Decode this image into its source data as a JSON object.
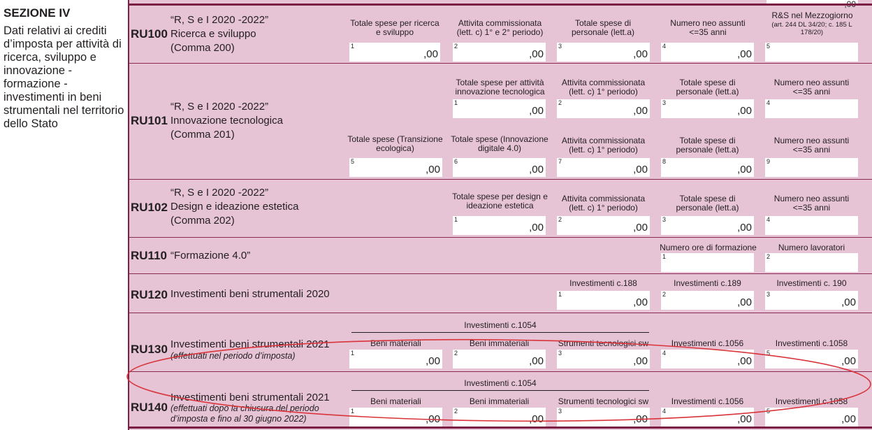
{
  "section": {
    "title": "SEZIONE IV",
    "description": "Dati relativi ai crediti d’imposta per attività di ricerca, sviluppo e innovazione - formazione - investimenti in beni strumentali nel territorio dello Stato"
  },
  "top_partial_value": ",00",
  "rows": {
    "ru100": {
      "code": "RU100",
      "desc": [
        "“R, S e I 2020 -2022”",
        "Ricerca e sviluppo",
        "(Comma 200)"
      ],
      "headers": [
        "Totale spese per ricerca e sviluppo",
        "Attivita commissionata (lett. c) 1° e 2° periodo)",
        "Totale spese di personale (lett.a)",
        "Numero neo assunti <=35 anni",
        "R&S nel Mezzogiorno",
        "(art. 244 DL 34/20; c. 185 L 178/20)"
      ],
      "fields": [
        {
          "num": "1",
          "val": ",00"
        },
        {
          "num": "2",
          "val": ",00"
        },
        {
          "num": "3",
          "val": ",00"
        },
        {
          "num": "4",
          "val": ",00"
        },
        {
          "num": "5",
          "val": ""
        }
      ]
    },
    "ru101": {
      "code": "RU101",
      "desc": [
        "“R, S e I 2020 -2022”",
        "Innovazione tecnologica",
        "(Comma 201)"
      ],
      "headers_top": [
        "Totale spese per attività innovazione tecnologica",
        "Attivita commissionata (lett. c) 1° periodo)",
        "Totale spese di personale (lett.a)",
        "Numero neo assunti <=35 anni"
      ],
      "fields_top": [
        {
          "num": "1",
          "val": ",00"
        },
        {
          "num": "2",
          "val": ",00"
        },
        {
          "num": "3",
          "val": ",00"
        },
        {
          "num": "4",
          "val": ""
        }
      ],
      "headers_bottom": [
        "Totale spese (Transizione ecologica)",
        "Totale spese (Innovazione digitale 4.0)",
        "Attivita commissionata (lett. c) 1° periodo)",
        "Totale spese di personale (lett.a)",
        "Numero neo assunti <=35 anni"
      ],
      "fields_bottom": [
        {
          "num": "5",
          "val": ",00"
        },
        {
          "num": "6",
          "val": ",00"
        },
        {
          "num": "7",
          "val": ",00"
        },
        {
          "num": "8",
          "val": ",00"
        },
        {
          "num": "9",
          "val": ""
        }
      ]
    },
    "ru102": {
      "code": "RU102",
      "desc": [
        "“R, S e I 2020 -2022”",
        "Design e ideazione estetica",
        "(Comma 202)"
      ],
      "headers": [
        "Totale spese per design e ideazione estetica",
        "Attivita commissionata (lett. c) 1° periodo)",
        "Totale spese di personale (lett.a)",
        "Numero neo assunti <=35 anni"
      ],
      "fields": [
        {
          "num": "1",
          "val": ",00"
        },
        {
          "num": "2",
          "val": ",00"
        },
        {
          "num": "3",
          "val": ",00"
        },
        {
          "num": "4",
          "val": ""
        }
      ]
    },
    "ru110": {
      "code": "RU110",
      "desc": "“Formazione 4.0”",
      "headers": [
        "Numero ore di formazione",
        "Numero lavoratori"
      ],
      "fields": [
        {
          "num": "1",
          "val": ""
        },
        {
          "num": "2",
          "val": ""
        }
      ]
    },
    "ru120": {
      "code": "RU120",
      "desc": "Investimenti beni strumentali 2020",
      "headers": [
        "Investimenti c.188",
        "Investimenti c.189",
        "Investimenti c. 190"
      ],
      "fields": [
        {
          "num": "1",
          "val": ",00"
        },
        {
          "num": "2",
          "val": ",00"
        },
        {
          "num": "3",
          "val": ",00"
        }
      ]
    },
    "ru130": {
      "code": "RU130",
      "desc": "Investimenti beni strumentali 2021",
      "note": "(effettuati nel periodo d’imposta)",
      "group": "Investimenti c.1054",
      "headers": [
        "Beni materiali",
        "Beni immateriali",
        "Strumenti tecnologici sw",
        "Investimenti c.1056",
        "Investimenti c.1058"
      ],
      "fields": [
        {
          "num": "1",
          "val": ",00"
        },
        {
          "num": "2",
          "val": ",00"
        },
        {
          "num": "3",
          "val": ",00"
        },
        {
          "num": "4",
          "val": ",00"
        },
        {
          "num": "5",
          "val": ",00"
        }
      ]
    },
    "ru140": {
      "code": "RU140",
      "desc": "Investimenti beni strumentali 2021",
      "note": [
        "(effettuati dopo la chiusura del periodo",
        "d’imposta e fino al 30 giugno 2022)"
      ],
      "group": "Investimenti c.1054",
      "headers": [
        "Beni materiali",
        "Beni immateriali",
        "Strumenti tecnologici sw",
        "Investimenti c.1056",
        "Investimenti c.1058"
      ],
      "fields": [
        {
          "num": "1",
          "val": ",00"
        },
        {
          "num": "2",
          "val": ",00"
        },
        {
          "num": "3",
          "val": ",00"
        },
        {
          "num": "4",
          "val": ",00"
        },
        {
          "num": "5",
          "val": ",00"
        }
      ]
    }
  },
  "colors": {
    "form_bg": "#e6c3d5",
    "rule": "#7b1f45",
    "highlight_ellipse": "#d9343a"
  }
}
